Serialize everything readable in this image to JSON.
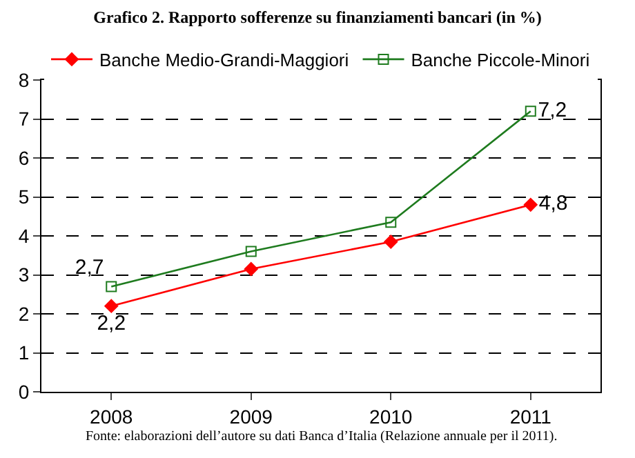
{
  "chart_data": {
    "type": "line",
    "title": "Grafico 2. Rapporto sofferenze su finanziamenti bancari (in %)",
    "categories": [
      "2008",
      "2009",
      "2010",
      "2011"
    ],
    "series": [
      {
        "name": "Banche Medio-Grandi-Maggiori",
        "color": "#ff0000",
        "marker": "diamond",
        "values": [
          2.2,
          3.15,
          3.85,
          4.8
        ],
        "value_labels": [
          "2,2",
          null,
          null,
          "4,8"
        ]
      },
      {
        "name": "Banche Piccole-Minori",
        "color": "#1e7b1e",
        "marker": "square",
        "values": [
          2.7,
          3.6,
          4.35,
          7.2
        ],
        "value_labels": [
          "2,7",
          null,
          null,
          "7,2"
        ]
      }
    ],
    "ylim": [
      0,
      8
    ],
    "yticks": [
      0,
      1,
      2,
      3,
      4,
      5,
      6,
      7,
      8
    ],
    "grid": "y",
    "legend": "top",
    "annotations": [
      "Fonte: elaborazioni dell’autore su dati Banca d’Italia (Relazione annuale per il 2011)."
    ]
  }
}
